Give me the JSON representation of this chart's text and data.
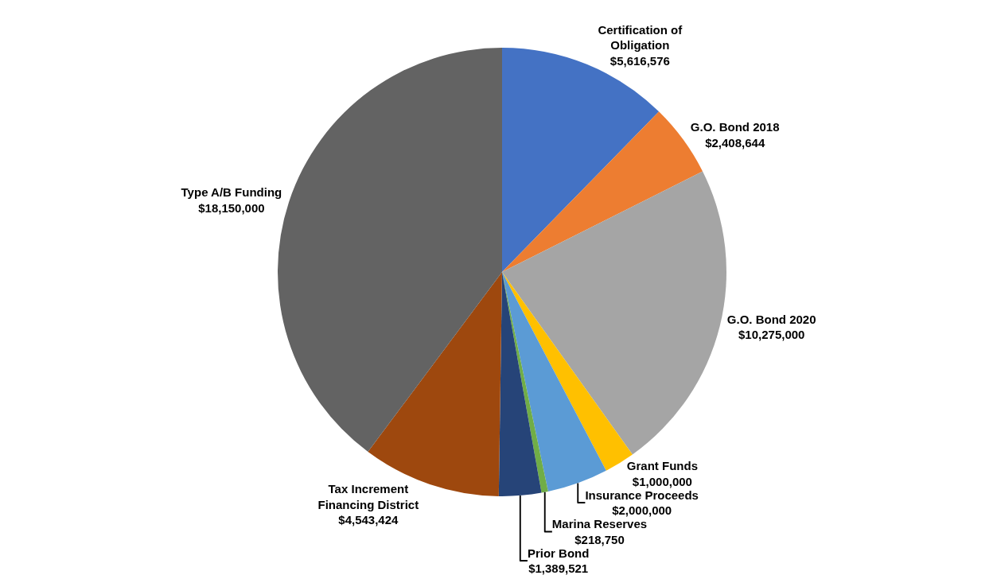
{
  "chart_data": {
    "type": "pie",
    "categories": [
      "Certification of Obligation",
      "G.O. Bond 2018",
      "G.O. Bond 2020",
      "Grant Funds",
      "Insurance Proceeds",
      "Marina Reserves",
      "Prior Bond",
      "Tax Increment Financing District",
      "Type A/B Funding"
    ],
    "values": [
      5616576,
      2408644,
      10275000,
      1000000,
      2000000,
      218750,
      1389521,
      4543424,
      18150000
    ],
    "value_labels": [
      "$5,616,576",
      "$2,408,644",
      "$10,275,000",
      "$1,000,000",
      "$2,000,000",
      "$218,750",
      "$1,389,521",
      "$4,543,424",
      "$18,150,000"
    ],
    "colors": [
      "#4472c4",
      "#ed7d31",
      "#a5a5a5",
      "#ffc000",
      "#5b9bd5",
      "#70ad47",
      "#264478",
      "#9e480e",
      "#636363"
    ],
    "legend": false
  }
}
